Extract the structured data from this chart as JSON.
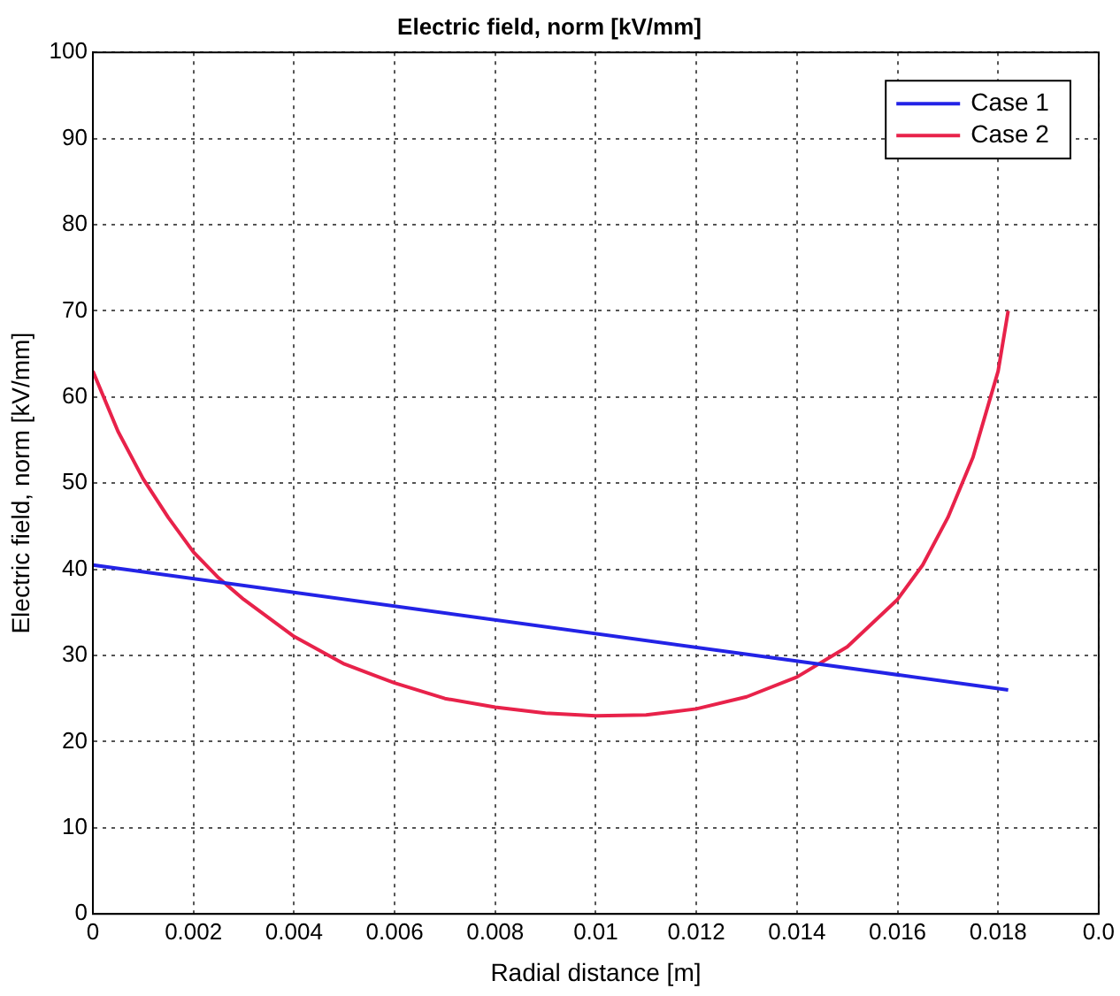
{
  "chart_data": {
    "type": "line",
    "title": "Electric field, norm [kV/mm]",
    "xlabel": "Radial distance [m]",
    "ylabel": "Electric field, norm [kV/mm]",
    "xlim": [
      0,
      0.02
    ],
    "ylim": [
      0,
      100
    ],
    "xticks": [
      0,
      0.002,
      0.004,
      0.006,
      0.008,
      0.01,
      0.012,
      0.014,
      0.016,
      0.018,
      {
        "value": 0.02,
        "label": "0.0"
      }
    ],
    "yticks": [
      0,
      10,
      20,
      30,
      40,
      50,
      60,
      70,
      80,
      90,
      100
    ],
    "grid": true,
    "legend": "top right",
    "marker": "none",
    "line_style": "solid",
    "series": [
      {
        "name": "Case 1",
        "color": "#2323e6",
        "x": [
          0,
          0.0182
        ],
        "values": [
          40.5,
          26
        ]
      },
      {
        "name": "Case 2",
        "color": "#e8224a",
        "x": [
          0,
          0.0005,
          0.001,
          0.0015,
          0.002,
          0.0025,
          0.003,
          0.004,
          0.005,
          0.006,
          0.007,
          0.008,
          0.009,
          0.01,
          0.011,
          0.012,
          0.013,
          0.014,
          0.015,
          0.016,
          0.0165,
          0.017,
          0.0175,
          0.018,
          0.0182
        ],
        "values": [
          63,
          56,
          50.5,
          46,
          42,
          39,
          36.5,
          32.2,
          29,
          26.8,
          25,
          24,
          23.3,
          23,
          23.1,
          23.8,
          25.2,
          27.5,
          31,
          36.5,
          40.5,
          46,
          53,
          63,
          70
        ]
      }
    ]
  }
}
